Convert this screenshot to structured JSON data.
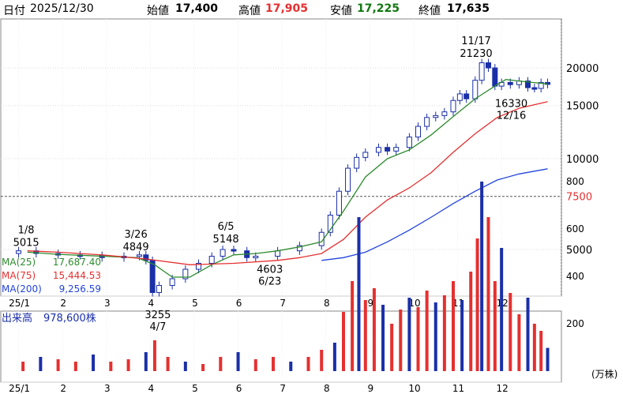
{
  "header": {
    "date_label": "日付",
    "date": "2025/12/30",
    "open_label": "始値",
    "open": "17,400",
    "high_label": "高値",
    "high": "17,905",
    "low_label": "安値",
    "low": "17,225",
    "close_label": "終値",
    "close": "17,635"
  },
  "colors": {
    "up": "#e53030",
    "down": "#1a2fa8",
    "ma25": "#2e8b2e",
    "ma75": "#e53030",
    "ma200": "#2244dd",
    "high": "#e53030",
    "low": "#117711",
    "ref_line": "#555555",
    "ref_label": "#e53030"
  },
  "chart_data": {
    "type": "candlestick",
    "x_ticks": [
      "25/1",
      "2",
      "3",
      "4",
      "5",
      "6",
      "7",
      "8",
      "9",
      "10",
      "11",
      "12"
    ],
    "y_ticks": [
      5000,
      10000,
      15000,
      20000
    ],
    "ref_line": {
      "value": 7500,
      "label": "7500"
    },
    "annotations": [
      {
        "date": "1/8",
        "value": "5015",
        "y": 5015
      },
      {
        "date": "3/26",
        "value": "4849",
        "y": 4849
      },
      {
        "date": "4/7",
        "value": "3255",
        "y": 3255
      },
      {
        "date": "6/5",
        "value": "5148",
        "y": 5148
      },
      {
        "date": "6/23",
        "value": "4603",
        "y": 4603
      },
      {
        "date": "11/17",
        "value": "21230",
        "y": 21230
      },
      {
        "date": "12/16",
        "value": "16330",
        "y": 16330
      }
    ],
    "price_closes": [
      {
        "m": 0.1,
        "v": 4950
      },
      {
        "m": 0.5,
        "v": 4850
      },
      {
        "m": 1.0,
        "v": 4800
      },
      {
        "m": 1.5,
        "v": 4780
      },
      {
        "m": 2.0,
        "v": 4700
      },
      {
        "m": 2.5,
        "v": 4750
      },
      {
        "m": 2.85,
        "v": 4800
      },
      {
        "m": 3.0,
        "v": 4600
      },
      {
        "m": 3.15,
        "v": 3600
      },
      {
        "m": 3.3,
        "v": 3800
      },
      {
        "m": 3.6,
        "v": 4000
      },
      {
        "m": 3.9,
        "v": 4300
      },
      {
        "m": 4.2,
        "v": 4500
      },
      {
        "m": 4.5,
        "v": 4750
      },
      {
        "m": 4.75,
        "v": 5000
      },
      {
        "m": 5.0,
        "v": 4950
      },
      {
        "m": 5.3,
        "v": 4700
      },
      {
        "m": 5.5,
        "v": 4750
      },
      {
        "m": 6.0,
        "v": 4950
      },
      {
        "m": 6.5,
        "v": 5150
      },
      {
        "m": 7.0,
        "v": 5700
      },
      {
        "m": 7.2,
        "v": 6500
      },
      {
        "m": 7.4,
        "v": 7800
      },
      {
        "m": 7.6,
        "v": 9300
      },
      {
        "m": 7.8,
        "v": 10100
      },
      {
        "m": 8.0,
        "v": 10500
      },
      {
        "m": 8.3,
        "v": 10900
      },
      {
        "m": 8.5,
        "v": 10600
      },
      {
        "m": 8.7,
        "v": 10900
      },
      {
        "m": 9.0,
        "v": 11800
      },
      {
        "m": 9.2,
        "v": 12800
      },
      {
        "m": 9.4,
        "v": 13700
      },
      {
        "m": 9.6,
        "v": 13900
      },
      {
        "m": 9.8,
        "v": 14300
      },
      {
        "m": 10.0,
        "v": 15600
      },
      {
        "m": 10.15,
        "v": 16400
      },
      {
        "m": 10.3,
        "v": 15800
      },
      {
        "m": 10.5,
        "v": 18200
      },
      {
        "m": 10.65,
        "v": 20800
      },
      {
        "m": 10.8,
        "v": 20000
      },
      {
        "m": 10.95,
        "v": 17400
      },
      {
        "m": 11.1,
        "v": 17900
      },
      {
        "m": 11.3,
        "v": 17600
      },
      {
        "m": 11.5,
        "v": 18100
      },
      {
        "m": 11.7,
        "v": 17200
      },
      {
        "m": 11.85,
        "v": 17100
      },
      {
        "m": 12.0,
        "v": 17900
      },
      {
        "m": 12.15,
        "v": 17635
      }
    ],
    "moving_averages": [
      {
        "name": "MA(25)",
        "value": "17,687.40",
        "points": [
          {
            "m": 0.3,
            "v": 4900
          },
          {
            "m": 1.0,
            "v": 4820
          },
          {
            "m": 2.0,
            "v": 4750
          },
          {
            "m": 2.8,
            "v": 4700
          },
          {
            "m": 3.2,
            "v": 4450
          },
          {
            "m": 3.6,
            "v": 4050
          },
          {
            "m": 4.0,
            "v": 4050
          },
          {
            "m": 4.5,
            "v": 4450
          },
          {
            "m": 5.0,
            "v": 4800
          },
          {
            "m": 5.5,
            "v": 4850
          },
          {
            "m": 6.0,
            "v": 4950
          },
          {
            "m": 6.5,
            "v": 5100
          },
          {
            "m": 7.0,
            "v": 5300
          },
          {
            "m": 7.5,
            "v": 6700
          },
          {
            "m": 8.0,
            "v": 8700
          },
          {
            "m": 8.5,
            "v": 10000
          },
          {
            "m": 9.0,
            "v": 10700
          },
          {
            "m": 9.5,
            "v": 12000
          },
          {
            "m": 10.0,
            "v": 13800
          },
          {
            "m": 10.5,
            "v": 15800
          },
          {
            "m": 11.0,
            "v": 17600
          },
          {
            "m": 11.2,
            "v": 18300
          },
          {
            "m": 11.5,
            "v": 18100
          },
          {
            "m": 11.8,
            "v": 17900
          },
          {
            "m": 12.15,
            "v": 17700
          }
        ]
      },
      {
        "name": "MA(75)",
        "value": "15,444.53",
        "points": [
          {
            "m": 0.3,
            "v": 4950
          },
          {
            "m": 1.0,
            "v": 4900
          },
          {
            "m": 2.0,
            "v": 4800
          },
          {
            "m": 3.0,
            "v": 4650
          },
          {
            "m": 4.0,
            "v": 4450
          },
          {
            "m": 5.0,
            "v": 4500
          },
          {
            "m": 6.0,
            "v": 4600
          },
          {
            "m": 6.5,
            "v": 4700
          },
          {
            "m": 7.0,
            "v": 4850
          },
          {
            "m": 7.5,
            "v": 5400
          },
          {
            "m": 8.0,
            "v": 6400
          },
          {
            "m": 8.5,
            "v": 7300
          },
          {
            "m": 9.0,
            "v": 8000
          },
          {
            "m": 9.5,
            "v": 9000
          },
          {
            "m": 10.0,
            "v": 10500
          },
          {
            "m": 10.5,
            "v": 12100
          },
          {
            "m": 11.0,
            "v": 13700
          },
          {
            "m": 11.5,
            "v": 14700
          },
          {
            "m": 12.15,
            "v": 15450
          }
        ]
      },
      {
        "name": "MA(200)",
        "value": "9,256.59",
        "points": [
          {
            "m": 7.0,
            "v": 4600
          },
          {
            "m": 7.5,
            "v": 4700
          },
          {
            "m": 8.0,
            "v": 4900
          },
          {
            "m": 8.5,
            "v": 5300
          },
          {
            "m": 9.0,
            "v": 5800
          },
          {
            "m": 9.5,
            "v": 6400
          },
          {
            "m": 10.0,
            "v": 7100
          },
          {
            "m": 10.5,
            "v": 7800
          },
          {
            "m": 11.0,
            "v": 8500
          },
          {
            "m": 11.5,
            "v": 8900
          },
          {
            "m": 12.15,
            "v": 9260
          }
        ]
      }
    ],
    "volume": {
      "label": "出来高",
      "value": "978,600株",
      "unit": "(万株)",
      "y_ticks": [
        200,
        400,
        600,
        800
      ],
      "bars": [
        {
          "m": 0.2,
          "v": 40
        },
        {
          "m": 0.6,
          "v": 60
        },
        {
          "m": 1.0,
          "v": 50
        },
        {
          "m": 1.4,
          "v": 40
        },
        {
          "m": 1.8,
          "v": 70
        },
        {
          "m": 2.2,
          "v": 40
        },
        {
          "m": 2.6,
          "v": 50
        },
        {
          "m": 3.0,
          "v": 80
        },
        {
          "m": 3.2,
          "v": 130
        },
        {
          "m": 3.5,
          "v": 60
        },
        {
          "m": 3.9,
          "v": 40
        },
        {
          "m": 4.3,
          "v": 30
        },
        {
          "m": 4.7,
          "v": 60
        },
        {
          "m": 5.1,
          "v": 80
        },
        {
          "m": 5.5,
          "v": 50
        },
        {
          "m": 5.9,
          "v": 60
        },
        {
          "m": 6.3,
          "v": 40
        },
        {
          "m": 6.7,
          "v": 60
        },
        {
          "m": 7.0,
          "v": 90
        },
        {
          "m": 7.3,
          "v": 120
        },
        {
          "m": 7.5,
          "v": 250
        },
        {
          "m": 7.7,
          "v": 380
        },
        {
          "m": 7.85,
          "v": 650
        },
        {
          "m": 8.0,
          "v": 300
        },
        {
          "m": 8.2,
          "v": 350
        },
        {
          "m": 8.4,
          "v": 280
        },
        {
          "m": 8.6,
          "v": 200
        },
        {
          "m": 8.8,
          "v": 260
        },
        {
          "m": 9.0,
          "v": 310
        },
        {
          "m": 9.2,
          "v": 270
        },
        {
          "m": 9.4,
          "v": 340
        },
        {
          "m": 9.6,
          "v": 290
        },
        {
          "m": 9.8,
          "v": 320
        },
        {
          "m": 10.0,
          "v": 380
        },
        {
          "m": 10.2,
          "v": 300
        },
        {
          "m": 10.4,
          "v": 420
        },
        {
          "m": 10.55,
          "v": 560
        },
        {
          "m": 10.65,
          "v": 800
        },
        {
          "m": 10.8,
          "v": 650
        },
        {
          "m": 10.95,
          "v": 380
        },
        {
          "m": 11.1,
          "v": 520
        },
        {
          "m": 11.3,
          "v": 330
        },
        {
          "m": 11.5,
          "v": 240
        },
        {
          "m": 11.7,
          "v": 310
        },
        {
          "m": 11.85,
          "v": 200
        },
        {
          "m": 12.0,
          "v": 170
        },
        {
          "m": 12.15,
          "v": 98
        }
      ]
    }
  }
}
